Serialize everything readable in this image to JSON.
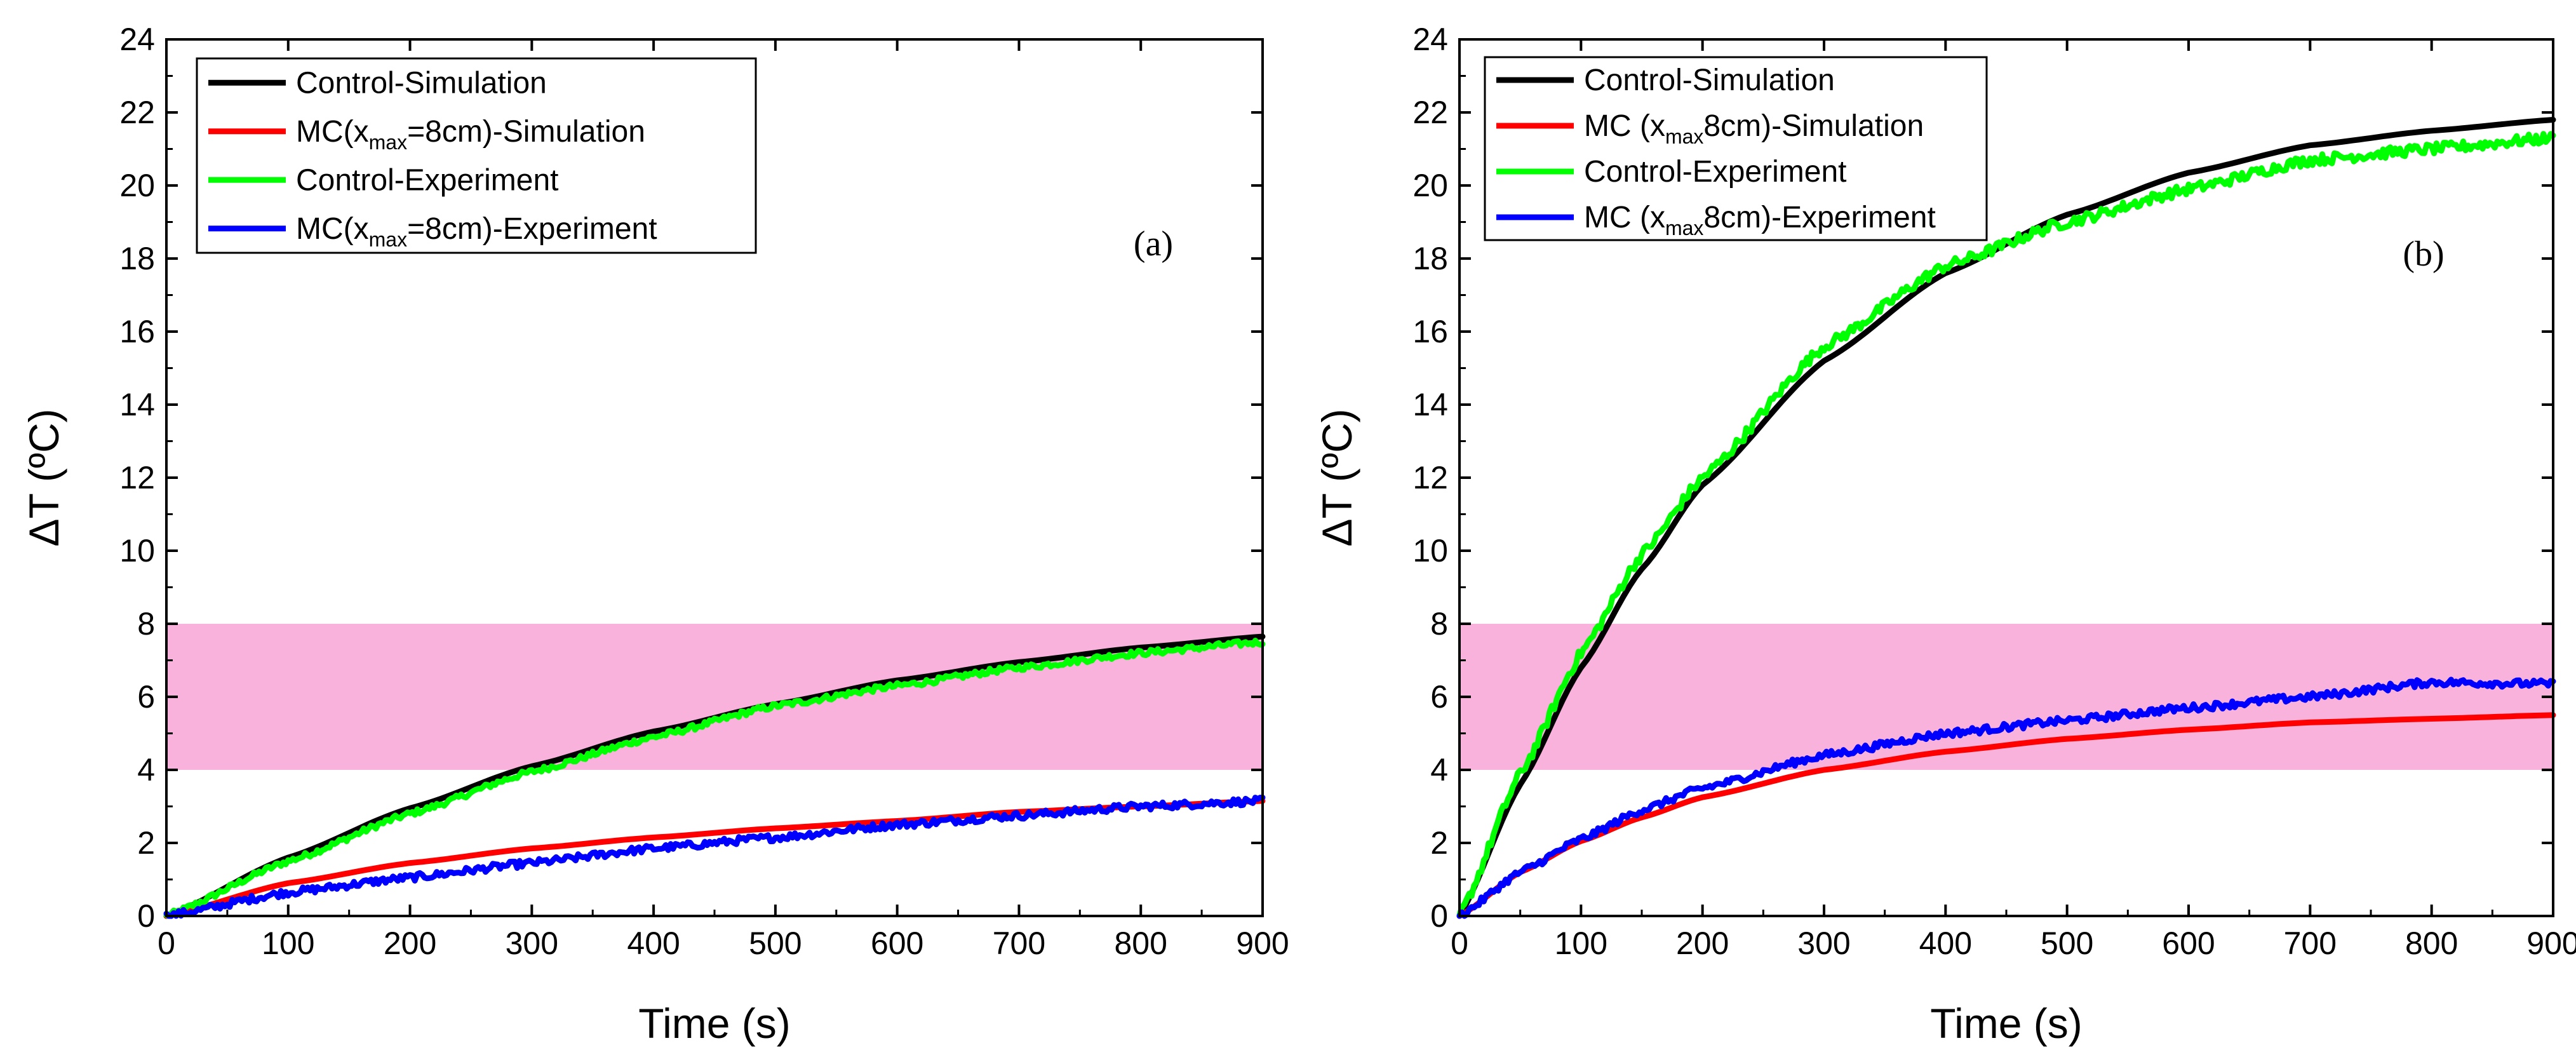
{
  "chart_data": [
    {
      "type": "line",
      "panel_label": "(a)",
      "xlabel": "Time (s)",
      "ylabel": "ΔT (ºC)",
      "xlim": [
        0,
        900
      ],
      "ylim": [
        0,
        24
      ],
      "xticks": [
        0,
        100,
        200,
        300,
        400,
        500,
        600,
        700,
        800,
        900
      ],
      "yticks": [
        0,
        2,
        4,
        6,
        8,
        10,
        12,
        14,
        16,
        18,
        20,
        22,
        24
      ],
      "grid": false,
      "legend_position": "top-left",
      "shaded_band": {
        "y_from": 4,
        "y_to": 8,
        "color": "#f9b2dc"
      },
      "series": [
        {
          "name": "Control-Simulation",
          "legend": [
            "Control-Simulation"
          ],
          "color": "#000000",
          "noise": 0,
          "x": [
            0,
            100,
            200,
            300,
            400,
            500,
            600,
            700,
            800,
            900
          ],
          "y": [
            0,
            1.6,
            2.95,
            4.1,
            5.05,
            5.8,
            6.45,
            6.95,
            7.35,
            7.65
          ]
        },
        {
          "name": "MC(xmax=8cm)-Simulation",
          "legend": [
            "MC(x",
            "max",
            "=8cm)-Simulation"
          ],
          "color": "#ff0000",
          "noise": 0,
          "x": [
            0,
            100,
            200,
            300,
            400,
            500,
            600,
            700,
            800,
            900
          ],
          "y": [
            0,
            0.9,
            1.45,
            1.85,
            2.15,
            2.4,
            2.6,
            2.85,
            3.0,
            3.15
          ]
        },
        {
          "name": "Control-Experiment",
          "legend": [
            "Control-Experiment"
          ],
          "color": "#00ff00",
          "noise": 0.08,
          "x": [
            0,
            100,
            200,
            300,
            400,
            500,
            600,
            700,
            800,
            900
          ],
          "y": [
            0,
            1.5,
            2.8,
            3.95,
            4.9,
            5.75,
            6.3,
            6.8,
            7.2,
            7.5
          ]
        },
        {
          "name": "MC(xmax=8cm)-Experiment",
          "legend": [
            "MC(x",
            "max",
            "=8cm)-Experiment"
          ],
          "color": "#0000ff",
          "noise": 0.1,
          "x": [
            0,
            100,
            200,
            300,
            400,
            500,
            600,
            700,
            800,
            900
          ],
          "y": [
            0,
            0.65,
            1.05,
            1.45,
            1.85,
            2.15,
            2.5,
            2.75,
            3.0,
            3.15
          ]
        }
      ]
    },
    {
      "type": "line",
      "panel_label": "(b)",
      "xlabel": "Time (s)",
      "ylabel": "ΔT (ºC)",
      "xlim": [
        0,
        900
      ],
      "ylim": [
        0,
        24
      ],
      "xticks": [
        0,
        100,
        200,
        300,
        400,
        500,
        600,
        700,
        800,
        900
      ],
      "yticks": [
        0,
        2,
        4,
        6,
        8,
        10,
        12,
        14,
        16,
        18,
        20,
        22,
        24
      ],
      "grid": false,
      "legend_position": "top-left",
      "shaded_band": {
        "y_from": 4,
        "y_to": 8,
        "color": "#f9b2dc"
      },
      "series": [
        {
          "name": "Control-Simulation",
          "legend": [
            "Control-Simulation"
          ],
          "color": "#000000",
          "noise": 0,
          "x": [
            0,
            50,
            100,
            150,
            200,
            300,
            400,
            500,
            600,
            700,
            800,
            900
          ],
          "y": [
            0,
            3.6,
            6.8,
            9.5,
            11.8,
            15.2,
            17.6,
            19.2,
            20.35,
            21.1,
            21.5,
            21.8
          ]
        },
        {
          "name": "MC (xmax8cm)-Simulation",
          "legend": [
            "MC (x",
            "max",
            "8cm)-Simulation"
          ],
          "color": "#ff0000",
          "noise": 0,
          "x": [
            0,
            50,
            100,
            150,
            200,
            300,
            400,
            500,
            600,
            700,
            800,
            900
          ],
          "y": [
            0,
            1.2,
            2.05,
            2.7,
            3.25,
            4.0,
            4.5,
            4.85,
            5.1,
            5.3,
            5.4,
            5.5
          ]
        },
        {
          "name": "Control-Experiment",
          "legend": [
            "Control-Experiment"
          ],
          "color": "#00ff00",
          "noise": 0.15,
          "x": [
            0,
            50,
            100,
            150,
            200,
            300,
            400,
            500,
            600,
            700,
            800,
            900
          ],
          "y": [
            0,
            3.9,
            7.2,
            9.9,
            12.0,
            15.6,
            17.8,
            19.0,
            19.9,
            20.7,
            21.0,
            21.3
          ]
        },
        {
          "name": "MC (xmax8cm)-Experiment",
          "legend": [
            "MC (x",
            "max",
            "8cm)-Experiment"
          ],
          "color": "#0000ff",
          "noise": 0.1,
          "x": [
            0,
            50,
            100,
            150,
            200,
            300,
            400,
            500,
            600,
            700,
            800,
            900
          ],
          "y": [
            0,
            1.2,
            2.1,
            2.9,
            3.5,
            4.4,
            5.0,
            5.35,
            5.7,
            6.0,
            6.4,
            6.35
          ]
        }
      ]
    }
  ]
}
